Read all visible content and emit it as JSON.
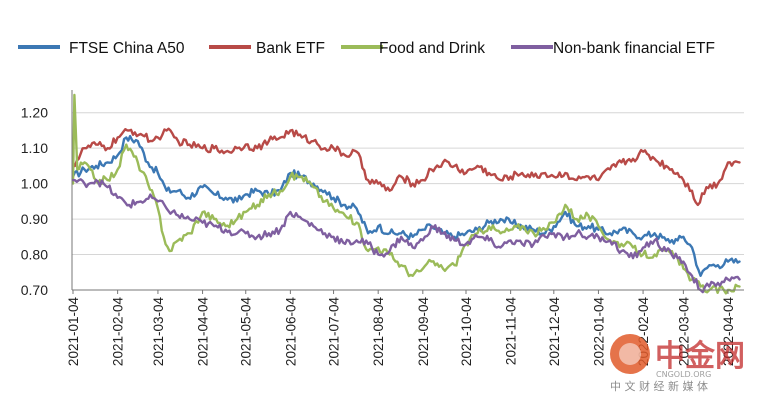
{
  "chart_data": {
    "type": "line",
    "title": "",
    "xlabel": "",
    "ylabel": "",
    "ylim": [
      0.7,
      1.25
    ],
    "y_ticks": [
      "0.70",
      "0.80",
      "0.90",
      "1.00",
      "1.10",
      "1.20"
    ],
    "x_ticks": [
      "2021-01-04",
      "2021-02-04",
      "2021-03-04",
      "2021-04-04",
      "2021-05-04",
      "2021-06-04",
      "2021-07-04",
      "2021-08-04",
      "2021-09-04",
      "2021-10-04",
      "2021-11-04",
      "2021-12-04",
      "2022-01-04",
      "2022-02-04",
      "2022-03-04",
      "2022-04-04"
    ],
    "x_range": [
      "2021-01-04",
      "2022-04-12"
    ],
    "grid": "horizontal",
    "legend_position": "top",
    "series": [
      {
        "name": "FTSE China A50",
        "color": "#3c78b4",
        "points": [
          [
            "2021-01-04",
            1.02
          ],
          [
            "2021-01-12",
            1.04
          ],
          [
            "2021-01-20",
            1.05
          ],
          [
            "2021-01-28",
            1.06
          ],
          [
            "2021-02-04",
            1.08
          ],
          [
            "2021-02-10",
            1.13
          ],
          [
            "2021-02-18",
            1.12
          ],
          [
            "2021-02-25",
            1.06
          ],
          [
            "2021-03-04",
            1.03
          ],
          [
            "2021-03-10",
            0.98
          ],
          [
            "2021-03-18",
            0.98
          ],
          [
            "2021-03-25",
            0.96
          ],
          [
            "2021-04-04",
            0.99
          ],
          [
            "2021-04-12",
            0.97
          ],
          [
            "2021-04-20",
            0.96
          ],
          [
            "2021-04-28",
            0.95
          ],
          [
            "2021-05-04",
            0.97
          ],
          [
            "2021-05-12",
            0.98
          ],
          [
            "2021-05-20",
            0.97
          ],
          [
            "2021-05-28",
            0.98
          ],
          [
            "2021-06-04",
            1.03
          ],
          [
            "2021-06-12",
            1.02
          ],
          [
            "2021-06-20",
            1.0
          ],
          [
            "2021-06-28",
            0.98
          ],
          [
            "2021-07-04",
            0.96
          ],
          [
            "2021-07-12",
            0.94
          ],
          [
            "2021-07-20",
            0.93
          ],
          [
            "2021-07-28",
            0.86
          ],
          [
            "2021-08-04",
            0.88
          ],
          [
            "2021-08-12",
            0.86
          ],
          [
            "2021-08-20",
            0.86
          ],
          [
            "2021-08-28",
            0.85
          ],
          [
            "2021-09-04",
            0.87
          ],
          [
            "2021-09-10",
            0.88
          ],
          [
            "2021-09-18",
            0.86
          ],
          [
            "2021-09-26",
            0.85
          ],
          [
            "2021-10-04",
            0.86
          ],
          [
            "2021-10-12",
            0.87
          ],
          [
            "2021-10-20",
            0.89
          ],
          [
            "2021-10-28",
            0.9
          ],
          [
            "2021-11-04",
            0.89
          ],
          [
            "2021-11-12",
            0.88
          ],
          [
            "2021-11-20",
            0.87
          ],
          [
            "2021-11-28",
            0.86
          ],
          [
            "2021-12-04",
            0.88
          ],
          [
            "2021-12-12",
            0.92
          ],
          [
            "2021-12-20",
            0.88
          ],
          [
            "2021-12-28",
            0.88
          ],
          [
            "2022-01-04",
            0.87
          ],
          [
            "2022-01-12",
            0.86
          ],
          [
            "2022-01-20",
            0.87
          ],
          [
            "2022-01-28",
            0.86
          ],
          [
            "2022-02-04",
            0.85
          ],
          [
            "2022-02-12",
            0.86
          ],
          [
            "2022-02-20",
            0.84
          ],
          [
            "2022-02-28",
            0.84
          ],
          [
            "2022-03-04",
            0.85
          ],
          [
            "2022-03-10",
            0.82
          ],
          [
            "2022-03-16",
            0.74
          ],
          [
            "2022-03-22",
            0.77
          ],
          [
            "2022-03-28",
            0.77
          ],
          [
            "2022-04-04",
            0.78
          ],
          [
            "2022-04-12",
            0.78
          ]
        ]
      },
      {
        "name": "Bank ETF",
        "color": "#b84a47",
        "points": [
          [
            "2021-01-04",
            1.05
          ],
          [
            "2021-01-12",
            1.1
          ],
          [
            "2021-01-20",
            1.11
          ],
          [
            "2021-01-28",
            1.1
          ],
          [
            "2021-02-04",
            1.13
          ],
          [
            "2021-02-12",
            1.15
          ],
          [
            "2021-02-20",
            1.14
          ],
          [
            "2021-02-28",
            1.12
          ],
          [
            "2021-03-04",
            1.13
          ],
          [
            "2021-03-10",
            1.15
          ],
          [
            "2021-03-18",
            1.12
          ],
          [
            "2021-03-26",
            1.11
          ],
          [
            "2021-04-04",
            1.1
          ],
          [
            "2021-04-12",
            1.1
          ],
          [
            "2021-04-20",
            1.09
          ],
          [
            "2021-04-28",
            1.1
          ],
          [
            "2021-05-04",
            1.11
          ],
          [
            "2021-05-12",
            1.1
          ],
          [
            "2021-05-20",
            1.12
          ],
          [
            "2021-05-28",
            1.13
          ],
          [
            "2021-06-04",
            1.15
          ],
          [
            "2021-06-12",
            1.13
          ],
          [
            "2021-06-20",
            1.12
          ],
          [
            "2021-06-28",
            1.1
          ],
          [
            "2021-07-04",
            1.1
          ],
          [
            "2021-07-12",
            1.08
          ],
          [
            "2021-07-20",
            1.09
          ],
          [
            "2021-07-28",
            1.01
          ],
          [
            "2021-08-04",
            1.0
          ],
          [
            "2021-08-12",
            0.98
          ],
          [
            "2021-08-20",
            1.02
          ],
          [
            "2021-08-28",
            1.0
          ],
          [
            "2021-09-04",
            1.01
          ],
          [
            "2021-09-10",
            1.04
          ],
          [
            "2021-09-18",
            1.06
          ],
          [
            "2021-09-26",
            1.05
          ],
          [
            "2021-10-04",
            1.03
          ],
          [
            "2021-10-12",
            1.05
          ],
          [
            "2021-10-20",
            1.03
          ],
          [
            "2021-10-28",
            1.01
          ],
          [
            "2021-11-04",
            1.02
          ],
          [
            "2021-11-12",
            1.03
          ],
          [
            "2021-11-20",
            1.02
          ],
          [
            "2021-11-28",
            1.03
          ],
          [
            "2021-12-04",
            1.02
          ],
          [
            "2021-12-12",
            1.03
          ],
          [
            "2021-12-20",
            1.01
          ],
          [
            "2021-12-28",
            1.02
          ],
          [
            "2022-01-04",
            1.01
          ],
          [
            "2022-01-12",
            1.04
          ],
          [
            "2022-01-20",
            1.06
          ],
          [
            "2022-01-28",
            1.07
          ],
          [
            "2022-02-04",
            1.09
          ],
          [
            "2022-02-12",
            1.07
          ],
          [
            "2022-02-20",
            1.05
          ],
          [
            "2022-02-28",
            1.03
          ],
          [
            "2022-03-04",
            1.01
          ],
          [
            "2022-03-10",
            0.98
          ],
          [
            "2022-03-14",
            0.94
          ],
          [
            "2022-03-20",
            0.99
          ],
          [
            "2022-03-28",
            1.0
          ],
          [
            "2022-04-04",
            1.06
          ],
          [
            "2022-04-12",
            1.06
          ]
        ]
      },
      {
        "name": "Food and Drink",
        "color": "#9bbb59",
        "points": [
          [
            "2021-01-04",
            1.0
          ],
          [
            "2021-01-05",
            1.25
          ],
          [
            "2021-01-07",
            1.04
          ],
          [
            "2021-01-12",
            1.06
          ],
          [
            "2021-01-20",
            1.01
          ],
          [
            "2021-01-28",
            1.01
          ],
          [
            "2021-02-04",
            1.04
          ],
          [
            "2021-02-10",
            1.11
          ],
          [
            "2021-02-18",
            1.06
          ],
          [
            "2021-02-25",
            1.0
          ],
          [
            "2021-03-04",
            0.93
          ],
          [
            "2021-03-08",
            0.85
          ],
          [
            "2021-03-12",
            0.81
          ],
          [
            "2021-03-18",
            0.84
          ],
          [
            "2021-03-26",
            0.86
          ],
          [
            "2021-04-04",
            0.92
          ],
          [
            "2021-04-12",
            0.9
          ],
          [
            "2021-04-20",
            0.88
          ],
          [
            "2021-04-28",
            0.9
          ],
          [
            "2021-05-04",
            0.92
          ],
          [
            "2021-05-12",
            0.94
          ],
          [
            "2021-05-20",
            0.97
          ],
          [
            "2021-05-28",
            0.98
          ],
          [
            "2021-06-04",
            1.02
          ],
          [
            "2021-06-12",
            1.02
          ],
          [
            "2021-06-20",
            0.99
          ],
          [
            "2021-06-28",
            0.95
          ],
          [
            "2021-07-04",
            0.93
          ],
          [
            "2021-07-12",
            0.91
          ],
          [
            "2021-07-20",
            0.89
          ],
          [
            "2021-07-28",
            0.81
          ],
          [
            "2021-08-04",
            0.82
          ],
          [
            "2021-08-12",
            0.8
          ],
          [
            "2021-08-20",
            0.77
          ],
          [
            "2021-08-28",
            0.74
          ],
          [
            "2021-09-04",
            0.76
          ],
          [
            "2021-09-10",
            0.78
          ],
          [
            "2021-09-18",
            0.76
          ],
          [
            "2021-09-26",
            0.77
          ],
          [
            "2021-10-04",
            0.83
          ],
          [
            "2021-10-12",
            0.86
          ],
          [
            "2021-10-20",
            0.88
          ],
          [
            "2021-10-28",
            0.86
          ],
          [
            "2021-11-04",
            0.87
          ],
          [
            "2021-11-12",
            0.88
          ],
          [
            "2021-11-20",
            0.86
          ],
          [
            "2021-11-28",
            0.87
          ],
          [
            "2021-12-04",
            0.89
          ],
          [
            "2021-12-12",
            0.94
          ],
          [
            "2021-12-20",
            0.9
          ],
          [
            "2021-12-28",
            0.91
          ],
          [
            "2022-01-04",
            0.88
          ],
          [
            "2022-01-12",
            0.84
          ],
          [
            "2022-01-20",
            0.83
          ],
          [
            "2022-01-28",
            0.82
          ],
          [
            "2022-02-04",
            0.8
          ],
          [
            "2022-02-12",
            0.8
          ],
          [
            "2022-02-20",
            0.81
          ],
          [
            "2022-02-28",
            0.79
          ],
          [
            "2022-03-04",
            0.76
          ],
          [
            "2022-03-10",
            0.73
          ],
          [
            "2022-03-16",
            0.71
          ],
          [
            "2022-03-22",
            0.7
          ],
          [
            "2022-04-04",
            0.7
          ],
          [
            "2022-04-12",
            0.71
          ]
        ]
      },
      {
        "name": "Non-bank financial ETF",
        "color": "#7f5fa0",
        "points": [
          [
            "2021-01-04",
            1.01
          ],
          [
            "2021-01-12",
            1.0
          ],
          [
            "2021-01-20",
            1.01
          ],
          [
            "2021-01-28",
            0.99
          ],
          [
            "2021-02-04",
            0.96
          ],
          [
            "2021-02-12",
            0.94
          ],
          [
            "2021-02-20",
            0.95
          ],
          [
            "2021-02-28",
            0.96
          ],
          [
            "2021-03-04",
            0.95
          ],
          [
            "2021-03-10",
            0.93
          ],
          [
            "2021-03-18",
            0.91
          ],
          [
            "2021-03-26",
            0.9
          ],
          [
            "2021-04-04",
            0.89
          ],
          [
            "2021-04-12",
            0.88
          ],
          [
            "2021-04-20",
            0.87
          ],
          [
            "2021-04-28",
            0.86
          ],
          [
            "2021-05-04",
            0.86
          ],
          [
            "2021-05-12",
            0.85
          ],
          [
            "2021-05-20",
            0.86
          ],
          [
            "2021-05-28",
            0.87
          ],
          [
            "2021-06-04",
            0.92
          ],
          [
            "2021-06-12",
            0.9
          ],
          [
            "2021-06-20",
            0.88
          ],
          [
            "2021-06-28",
            0.86
          ],
          [
            "2021-07-04",
            0.85
          ],
          [
            "2021-07-12",
            0.83
          ],
          [
            "2021-07-20",
            0.84
          ],
          [
            "2021-07-28",
            0.83
          ],
          [
            "2021-08-04",
            0.8
          ],
          [
            "2021-08-12",
            0.81
          ],
          [
            "2021-08-20",
            0.85
          ],
          [
            "2021-08-28",
            0.82
          ],
          [
            "2021-09-04",
            0.84
          ],
          [
            "2021-09-10",
            0.88
          ],
          [
            "2021-09-18",
            0.86
          ],
          [
            "2021-09-26",
            0.84
          ],
          [
            "2021-10-04",
            0.83
          ],
          [
            "2021-10-12",
            0.85
          ],
          [
            "2021-10-20",
            0.84
          ],
          [
            "2021-10-28",
            0.82
          ],
          [
            "2021-11-04",
            0.84
          ],
          [
            "2021-11-12",
            0.83
          ],
          [
            "2021-11-20",
            0.83
          ],
          [
            "2021-11-28",
            0.85
          ],
          [
            "2021-12-04",
            0.86
          ],
          [
            "2021-12-12",
            0.85
          ],
          [
            "2021-12-20",
            0.86
          ],
          [
            "2021-12-28",
            0.85
          ],
          [
            "2022-01-04",
            0.85
          ],
          [
            "2022-01-12",
            0.84
          ],
          [
            "2022-01-20",
            0.81
          ],
          [
            "2022-01-28",
            0.79
          ],
          [
            "2022-02-04",
            0.82
          ],
          [
            "2022-02-12",
            0.84
          ],
          [
            "2022-02-20",
            0.81
          ],
          [
            "2022-02-28",
            0.79
          ],
          [
            "2022-03-04",
            0.78
          ],
          [
            "2022-03-10",
            0.74
          ],
          [
            "2022-03-16",
            0.7
          ],
          [
            "2022-03-22",
            0.71
          ],
          [
            "2022-03-28",
            0.72
          ],
          [
            "2022-04-04",
            0.73
          ],
          [
            "2022-04-12",
            0.73
          ]
        ]
      }
    ]
  },
  "watermark": {
    "name": "中金网",
    "domain": "CNGOLD.ORG",
    "tagline": "中 文 财 经 新 媒 体"
  }
}
